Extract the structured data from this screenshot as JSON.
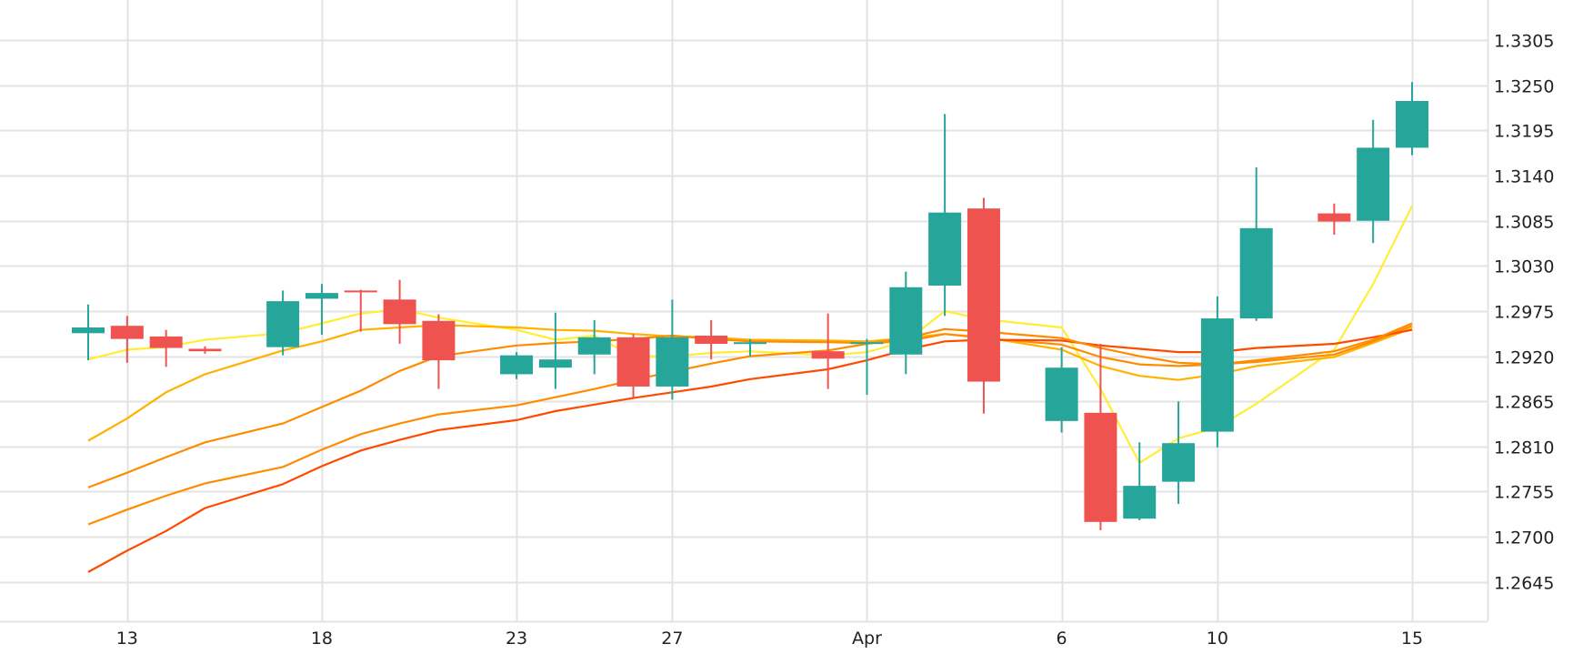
{
  "chart_data": {
    "type": "candlestick",
    "title": "",
    "xlabel": "",
    "ylabel": "",
    "ylim": [
      1.2597,
      1.3354
    ],
    "y_ticks": [
      "1.3305",
      "1.3250",
      "1.3195",
      "1.3140",
      "1.3085",
      "1.3030",
      "1.2975",
      "1.2920",
      "1.2865",
      "1.2810",
      "1.2755",
      "1.2700",
      "1.2645"
    ],
    "x_ticks": [
      {
        "label": "13",
        "date": "2020-03-13"
      },
      {
        "label": "18",
        "date": "2020-03-18"
      },
      {
        "label": "23",
        "date": "2020-03-23"
      },
      {
        "label": "27",
        "date": "2020-03-27"
      },
      {
        "label": "Apr",
        "date": "2020-04-01"
      },
      {
        "label": "6",
        "date": "2020-04-06"
      },
      {
        "label": "10",
        "date": "2020-04-10"
      },
      {
        "label": "15",
        "date": "2020-04-15"
      }
    ],
    "vertical_grid_dates": [
      "2020-03-13",
      "2020-03-18",
      "2020-03-23",
      "2020-03-27",
      "2020-04-01",
      "2020-04-06",
      "2020-04-10",
      "2020-04-15"
    ],
    "grid": true,
    "legend": "none",
    "colors": {
      "up": "#26a69a",
      "down": "#ef5350",
      "grid": "#e3e3e3",
      "axis_text": "#222222",
      "ma_lines": [
        "#ffee33",
        "#ffb300",
        "#ff8c00",
        "#ff4a00"
      ]
    },
    "candles": [
      {
        "date": "2020-03-12",
        "open": 1.2948,
        "high": 1.2983,
        "low": 1.2915,
        "close": 1.2955
      },
      {
        "date": "2020-03-13",
        "open": 1.2957,
        "high": 1.2969,
        "low": 1.2912,
        "close": 1.2941
      },
      {
        "date": "2020-03-14",
        "open": 1.2944,
        "high": 1.2952,
        "low": 1.2907,
        "close": 1.293
      },
      {
        "date": "2020-03-15",
        "open": 1.2929,
        "high": 1.2932,
        "low": 1.2923,
        "close": 1.2926
      },
      {
        "date": "2020-03-17",
        "open": 1.2931,
        "high": 1.3,
        "low": 1.2921,
        "close": 1.2987
      },
      {
        "date": "2020-03-18",
        "open": 1.299,
        "high": 1.3008,
        "low": 1.2946,
        "close": 1.2997
      },
      {
        "date": "2020-03-19",
        "open": 1.3,
        "high": 1.3001,
        "low": 1.295,
        "close": 1.2999
      },
      {
        "date": "2020-03-20",
        "open": 1.2989,
        "high": 1.3013,
        "low": 1.2935,
        "close": 1.2959
      },
      {
        "date": "2020-03-21",
        "open": 1.2963,
        "high": 1.2971,
        "low": 1.288,
        "close": 1.2915
      },
      {
        "date": "2020-03-23",
        "open": 1.2898,
        "high": 1.2925,
        "low": 1.2892,
        "close": 1.2921
      },
      {
        "date": "2020-03-24",
        "open": 1.2906,
        "high": 1.2973,
        "low": 1.288,
        "close": 1.2916
      },
      {
        "date": "2020-03-25",
        "open": 1.2922,
        "high": 1.2964,
        "low": 1.2898,
        "close": 1.2943
      },
      {
        "date": "2020-03-26",
        "open": 1.2943,
        "high": 1.2947,
        "low": 1.287,
        "close": 1.2883
      },
      {
        "date": "2020-03-27",
        "open": 1.2883,
        "high": 1.2989,
        "low": 1.2867,
        "close": 1.2943
      },
      {
        "date": "2020-03-28",
        "open": 1.2945,
        "high": 1.2964,
        "low": 1.2916,
        "close": 1.2935
      },
      {
        "date": "2020-03-29",
        "open": 1.2936,
        "high": 1.2941,
        "low": 1.292,
        "close": 1.2937
      },
      {
        "date": "2020-03-31",
        "open": 1.2926,
        "high": 1.2972,
        "low": 1.288,
        "close": 1.2917
      },
      {
        "date": "2020-04-01",
        "open": 1.2936,
        "high": 1.2941,
        "low": 1.2873,
        "close": 1.2937
      },
      {
        "date": "2020-04-02",
        "open": 1.2922,
        "high": 1.3023,
        "low": 1.2898,
        "close": 1.3004
      },
      {
        "date": "2020-04-03",
        "open": 1.3006,
        "high": 1.3215,
        "low": 1.2969,
        "close": 1.3095
      },
      {
        "date": "2020-04-04",
        "open": 1.31,
        "high": 1.3113,
        "low": 1.285,
        "close": 1.2889
      },
      {
        "date": "2020-04-06",
        "open": 1.2841,
        "high": 1.2931,
        "low": 1.2827,
        "close": 1.2906
      },
      {
        "date": "2020-04-07",
        "open": 1.2851,
        "high": 1.2935,
        "low": 1.2708,
        "close": 1.2718
      },
      {
        "date": "2020-04-08",
        "open": 1.2722,
        "high": 1.2815,
        "low": 1.272,
        "close": 1.2762
      },
      {
        "date": "2020-04-09",
        "open": 1.2767,
        "high": 1.2865,
        "low": 1.274,
        "close": 1.2814
      },
      {
        "date": "2020-04-10",
        "open": 1.2828,
        "high": 1.2993,
        "low": 1.2809,
        "close": 1.2966
      },
      {
        "date": "2020-04-11",
        "open": 1.2966,
        "high": 1.315,
        "low": 1.2963,
        "close": 1.3076
      },
      {
        "date": "2020-04-13",
        "open": 1.3094,
        "high": 1.3106,
        "low": 1.3068,
        "close": 1.3084
      },
      {
        "date": "2020-04-14",
        "open": 1.3085,
        "high": 1.3208,
        "low": 1.3058,
        "close": 1.3174
      },
      {
        "date": "2020-04-15",
        "open": 1.3174,
        "high": 1.3254,
        "low": 1.3165,
        "close": 1.3231
      }
    ],
    "series": [
      {
        "type": "line",
        "color": "#ffee33",
        "x": [
          "2020-03-12",
          "2020-03-13",
          "2020-03-14",
          "2020-03-15",
          "2020-03-17",
          "2020-03-18",
          "2020-03-19",
          "2020-03-20",
          "2020-03-21",
          "2020-03-23",
          "2020-03-24",
          "2020-03-25",
          "2020-03-26",
          "2020-03-27",
          "2020-03-28",
          "2020-03-29",
          "2020-03-31",
          "2020-04-01",
          "2020-04-02",
          "2020-04-03",
          "2020-04-04",
          "2020-04-06",
          "2020-04-07",
          "2020-04-08",
          "2020-04-09",
          "2020-04-10",
          "2020-04-11",
          "2020-04-13",
          "2020-04-14",
          "2020-04-15"
        ],
        "values": [
          1.2916,
          1.2928,
          1.2931,
          1.294,
          1.2948,
          1.296,
          1.2972,
          1.2977,
          1.2967,
          1.2952,
          1.294,
          1.2945,
          1.292,
          1.292,
          1.2924,
          1.2926,
          1.2921,
          1.2925,
          1.2938,
          1.2975,
          1.2965,
          1.2955,
          1.288,
          1.279,
          1.282,
          1.2833,
          1.2862,
          1.2928,
          1.3008,
          1.3103
        ]
      },
      {
        "type": "line",
        "color": "#ffb300",
        "x": [
          "2020-03-12",
          "2020-03-13",
          "2020-03-14",
          "2020-03-15",
          "2020-03-17",
          "2020-03-18",
          "2020-03-19",
          "2020-03-20",
          "2020-03-21",
          "2020-03-23",
          "2020-03-24",
          "2020-03-25",
          "2020-03-26",
          "2020-03-27",
          "2020-03-28",
          "2020-03-29",
          "2020-03-31",
          "2020-04-01",
          "2020-04-02",
          "2020-04-03",
          "2020-04-04",
          "2020-04-06",
          "2020-04-07",
          "2020-04-08",
          "2020-04-09",
          "2020-04-10",
          "2020-04-11",
          "2020-04-13",
          "2020-04-14",
          "2020-04-15"
        ],
        "values": [
          1.2817,
          1.2844,
          1.2876,
          1.2898,
          1.2927,
          1.2938,
          1.2952,
          1.2955,
          1.2958,
          1.2955,
          1.2952,
          1.2951,
          1.2947,
          1.2944,
          1.2943,
          1.294,
          1.2939,
          1.2938,
          1.2942,
          1.2947,
          1.2943,
          1.2928,
          1.2908,
          1.2896,
          1.2891,
          1.2898,
          1.2908,
          1.2919,
          1.2936,
          1.2954
        ]
      },
      {
        "type": "line",
        "color": "#ff8c00",
        "x": [
          "2020-03-12",
          "2020-03-13",
          "2020-03-14",
          "2020-03-15",
          "2020-03-17",
          "2020-03-18",
          "2020-03-19",
          "2020-03-20",
          "2020-03-21",
          "2020-03-23",
          "2020-03-24",
          "2020-03-25",
          "2020-03-26",
          "2020-03-27",
          "2020-03-28",
          "2020-03-29",
          "2020-03-31",
          "2020-04-01",
          "2020-04-02",
          "2020-04-03",
          "2020-04-04",
          "2020-04-06",
          "2020-04-07",
          "2020-04-08",
          "2020-04-09",
          "2020-04-10",
          "2020-04-11",
          "2020-04-13",
          "2020-04-14",
          "2020-04-15"
        ],
        "values": [
          1.276,
          1.2778,
          1.2797,
          1.2815,
          1.2838,
          1.2858,
          1.2878,
          1.2902,
          1.292,
          1.2933,
          1.2936,
          1.2938,
          1.2941,
          1.2945,
          1.2941,
          1.2938,
          1.2937,
          1.2936,
          1.2938,
          1.2947,
          1.2942,
          1.2934,
          1.2919,
          1.291,
          1.2908,
          1.291,
          1.2913,
          1.2922,
          1.2938,
          1.2957
        ]
      },
      {
        "type": "line",
        "color": "#ff4a00",
        "x": [
          "2020-03-12",
          "2020-03-13",
          "2020-03-14",
          "2020-03-15",
          "2020-03-17",
          "2020-03-18",
          "2020-03-19",
          "2020-03-20",
          "2020-03-21",
          "2020-03-23",
          "2020-03-24",
          "2020-03-25",
          "2020-03-26",
          "2020-03-27",
          "2020-03-28",
          "2020-03-29",
          "2020-03-31",
          "2020-04-01",
          "2020-04-02",
          "2020-04-03",
          "2020-04-04",
          "2020-04-06",
          "2020-04-07",
          "2020-04-08",
          "2020-04-09",
          "2020-04-10",
          "2020-04-11",
          "2020-04-13",
          "2020-04-14",
          "2020-04-15"
        ],
        "values": [
          1.2657,
          1.2683,
          1.2707,
          1.2735,
          1.2764,
          1.2786,
          1.2805,
          1.2818,
          1.283,
          1.2842,
          1.2853,
          1.2861,
          1.2869,
          1.2876,
          1.2883,
          1.2892,
          1.2904,
          1.2915,
          1.2928,
          1.2938,
          1.294,
          1.2939,
          1.2933,
          1.2929,
          1.2925,
          1.2925,
          1.293,
          1.2935,
          1.2943,
          1.2952
        ]
      },
      {
        "type": "line",
        "color": "#ff8c00",
        "x": [
          "2020-03-12",
          "2020-03-13",
          "2020-03-14",
          "2020-03-15",
          "2020-03-17",
          "2020-03-18",
          "2020-03-19",
          "2020-03-20",
          "2020-03-21",
          "2020-03-23",
          "2020-03-24",
          "2020-03-25",
          "2020-03-26",
          "2020-03-27",
          "2020-03-28",
          "2020-03-29",
          "2020-03-31",
          "2020-04-01",
          "2020-04-02",
          "2020-04-03",
          "2020-04-04",
          "2020-04-06",
          "2020-04-07",
          "2020-04-08",
          "2020-04-09",
          "2020-04-10",
          "2020-04-11",
          "2020-04-13",
          "2020-04-14",
          "2020-04-15"
        ],
        "values": [
          1.2715,
          1.2733,
          1.275,
          1.2765,
          1.2785,
          1.2806,
          1.2825,
          1.2838,
          1.2849,
          1.286,
          1.287,
          1.288,
          1.2891,
          1.2901,
          1.2911,
          1.292,
          1.2927,
          1.2935,
          1.2942,
          1.2953,
          1.295,
          1.2942,
          1.293,
          1.292,
          1.2912,
          1.291,
          1.2915,
          1.2926,
          1.294,
          1.296
        ]
      }
    ]
  }
}
